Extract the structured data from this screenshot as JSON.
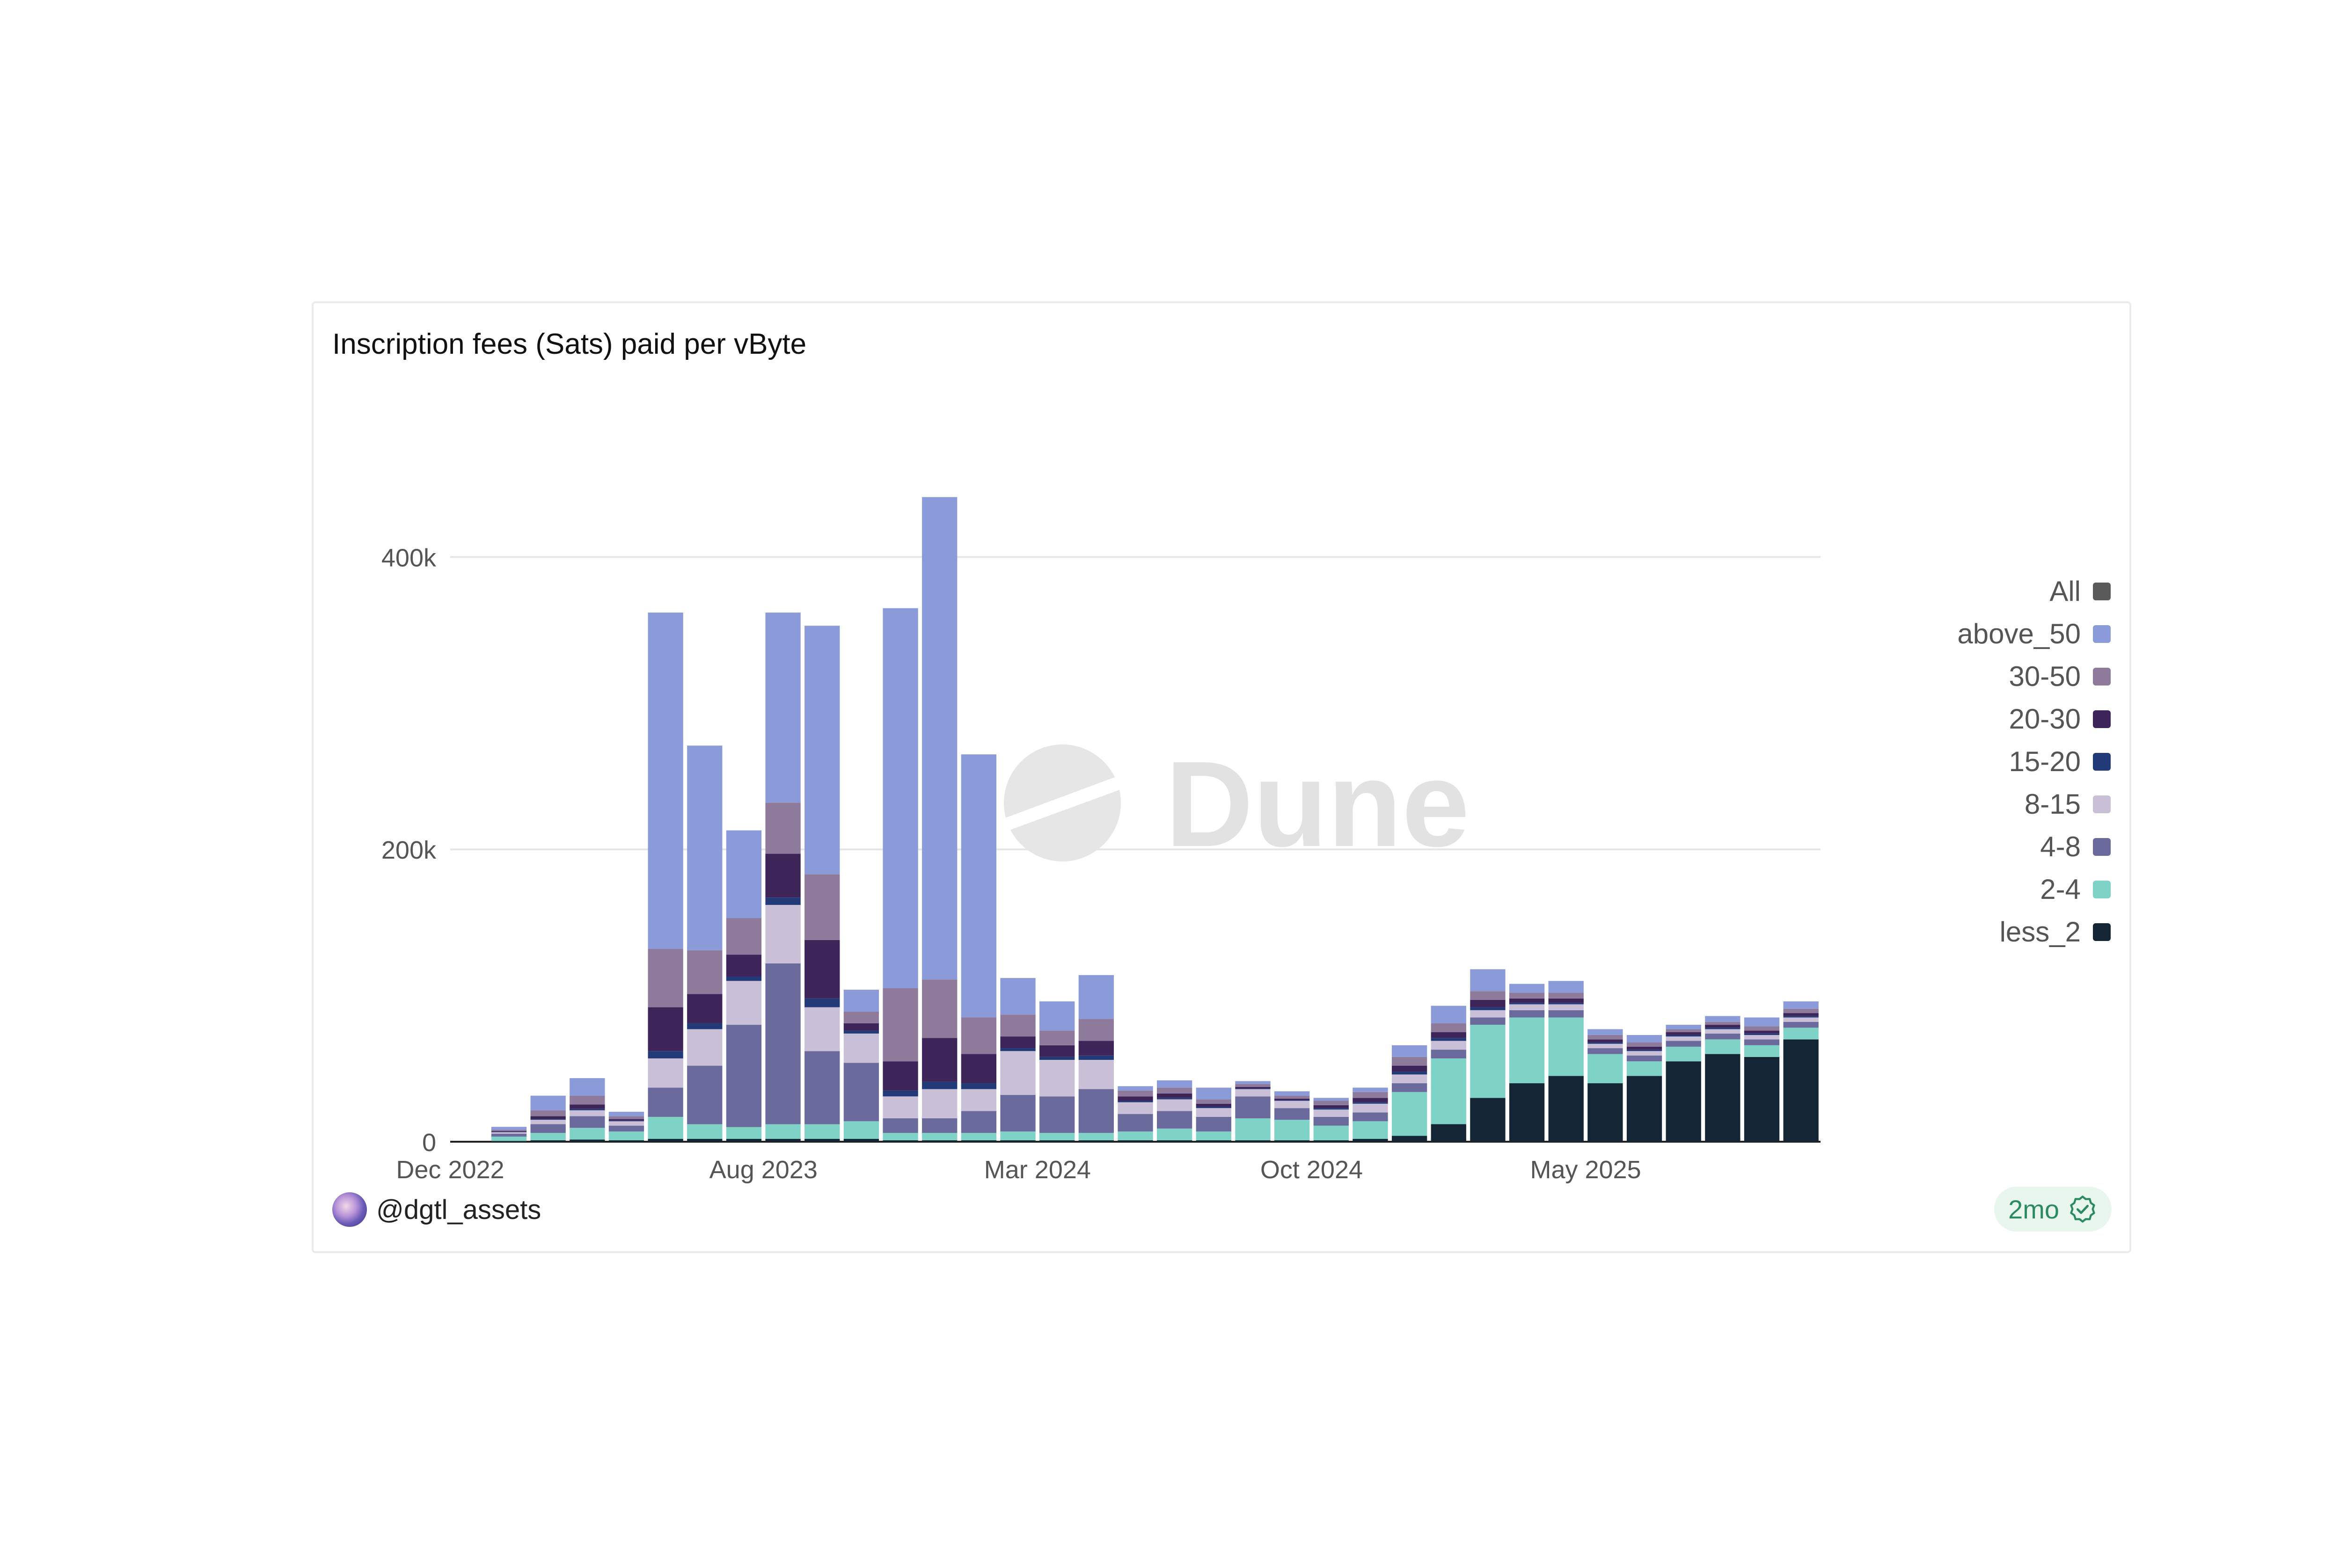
{
  "card": {
    "title": "Inscription fees (Sats) paid per vByte",
    "user": "@dgtl_assets",
    "age_badge": "2mo",
    "badge_icon": "verified-check-icon",
    "watermark": "Dune"
  },
  "legend": [
    {
      "label": "All",
      "color": "#5a5a5a"
    },
    {
      "label": "above_50",
      "color": "#8b9bd9"
    },
    {
      "label": "30-50",
      "color": "#8e7b9c"
    },
    {
      "label": "20-30",
      "color": "#3d2559"
    },
    {
      "label": "15-20",
      "color": "#233a78"
    },
    {
      "label": "8-15",
      "color": "#c9bfd6"
    },
    {
      "label": "4-8",
      "color": "#6a6a9c"
    },
    {
      "label": "2-4",
      "color": "#7fd3c6"
    },
    {
      "label": "less_2",
      "color": "#142535"
    }
  ],
  "chart_data": {
    "type": "bar",
    "stacked": true,
    "title": "Inscription fees (Sats) paid per vByte",
    "xlabel": "",
    "ylabel": "",
    "ylim": [
      0,
      500000
    ],
    "yticks": [
      0,
      200000,
      400000
    ],
    "ytick_labels": [
      "0",
      "200k",
      "400k"
    ],
    "xtick_labels": [
      "Dec 2022",
      "Aug 2023",
      "Mar 2024",
      "Oct 2024",
      "May 2025"
    ],
    "grid": true,
    "legend_position": "right",
    "x": [
      "2022-12",
      "2023-01",
      "2023-02",
      "2023-03",
      "2023-04",
      "2023-05",
      "2023-06",
      "2023-07",
      "2023-08",
      "2023-09",
      "2023-10",
      "2023-11",
      "2023-12",
      "2024-01",
      "2024-02",
      "2024-03",
      "2024-04",
      "2024-05",
      "2024-06",
      "2024-07",
      "2024-08",
      "2024-09",
      "2024-10",
      "2024-11",
      "2024-12",
      "2025-01",
      "2025-02",
      "2025-03",
      "2025-04",
      "2025-05",
      "2025-06",
      "2025-07",
      "2025-08",
      "2025-09",
      "2025-10"
    ],
    "series": [
      {
        "name": "above_50",
        "values": [
          0,
          2000,
          10000,
          12000,
          3000,
          230000,
          140000,
          60000,
          130000,
          170000,
          15000,
          260000,
          330000,
          180000,
          25000,
          20000,
          30000,
          3000,
          5000,
          8000,
          2000,
          3000,
          2000,
          3000,
          8000,
          12000,
          15000,
          6000,
          8000,
          4000,
          5000,
          3000,
          4000,
          6000,
          5000
        ]
      },
      {
        "name": "30-50",
        "values": [
          0,
          1000,
          4000,
          6000,
          2000,
          40000,
          30000,
          25000,
          35000,
          45000,
          8000,
          50000,
          40000,
          25000,
          15000,
          10000,
          15000,
          4000,
          4000,
          3000,
          2000,
          2000,
          3000,
          4000,
          6000,
          6000,
          6000,
          4000,
          4000,
          3000,
          3000,
          2000,
          2000,
          3000,
          3000
        ]
      },
      {
        "name": "20-30",
        "values": [
          0,
          500,
          2000,
          3000,
          1000,
          30000,
          20000,
          15000,
          30000,
          40000,
          5000,
          20000,
          30000,
          20000,
          8000,
          8000,
          10000,
          3000,
          3000,
          2000,
          1000,
          1000,
          2000,
          3000,
          4000,
          4000,
          5000,
          3000,
          3000,
          2000,
          2000,
          2000,
          2000,
          2000,
          2000
        ]
      },
      {
        "name": "15-20",
        "values": [
          0,
          200,
          500,
          1000,
          500,
          5000,
          4000,
          3000,
          5000,
          6000,
          2000,
          4000,
          5000,
          4000,
          2000,
          2000,
          3000,
          1000,
          1000,
          1000,
          500,
          500,
          1000,
          1000,
          2000,
          2000,
          2000,
          1000,
          1000,
          1000,
          1000,
          1000,
          1000,
          1000,
          1000
        ]
      },
      {
        "name": "8-15",
        "values": [
          0,
          1000,
          3000,
          4000,
          3000,
          20000,
          25000,
          30000,
          40000,
          30000,
          20000,
          15000,
          20000,
          15000,
          30000,
          25000,
          20000,
          8000,
          8000,
          6000,
          5000,
          5000,
          5000,
          6000,
          6000,
          6000,
          5000,
          4000,
          4000,
          3000,
          3000,
          3000,
          3000,
          3000,
          3000
        ]
      },
      {
        "name": "4-8",
        "values": [
          0,
          2000,
          6000,
          8000,
          4000,
          20000,
          40000,
          70000,
          110000,
          50000,
          40000,
          10000,
          10000,
          15000,
          25000,
          25000,
          30000,
          12000,
          12000,
          10000,
          15000,
          8000,
          6000,
          6000,
          6000,
          6000,
          5000,
          5000,
          5000,
          4000,
          4000,
          4000,
          4000,
          4000,
          4000
        ]
      },
      {
        "name": "2-4",
        "values": [
          0,
          3000,
          5000,
          8000,
          6000,
          15000,
          10000,
          8000,
          10000,
          10000,
          12000,
          5000,
          5000,
          5000,
          6000,
          5000,
          5000,
          6000,
          8000,
          6000,
          15000,
          14000,
          10000,
          12000,
          30000,
          45000,
          50000,
          45000,
          40000,
          20000,
          10000,
          10000,
          10000,
          8000,
          8000
        ]
      },
      {
        "name": "less_2",
        "values": [
          0,
          500,
          1000,
          1500,
          1000,
          2000,
          2000,
          2000,
          2000,
          2000,
          2000,
          1000,
          1000,
          1000,
          1000,
          1000,
          1000,
          1000,
          1000,
          1000,
          1000,
          1000,
          1000,
          2000,
          4000,
          12000,
          30000,
          40000,
          45000,
          40000,
          45000,
          55000,
          60000,
          58000,
          70000
        ]
      }
    ]
  }
}
